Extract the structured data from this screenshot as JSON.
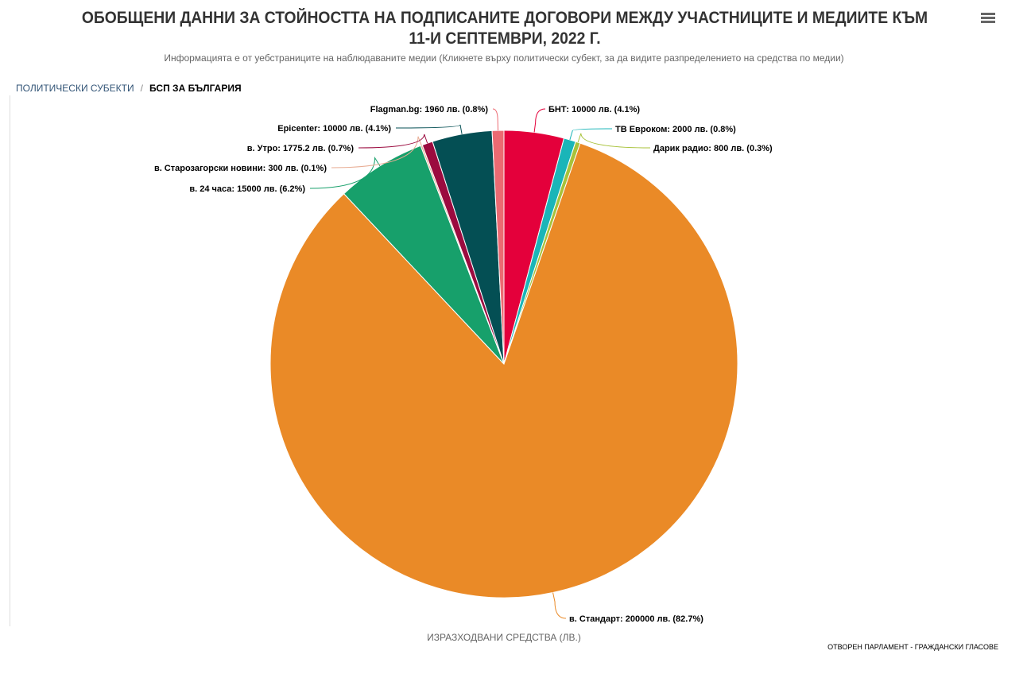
{
  "header": {
    "title": "ОБОБЩЕНИ ДАННИ ЗА СТОЙНОСТТА НА ПОДПИСАНИТЕ ДОГОВОРИ МЕЖДУ УЧАСТНИЦИТЕ И МЕДИИТЕ КЪМ 11-И СЕПТЕМВРИ, 2022 Г.",
    "subtitle": "Информацията е от уебстраниците на наблюдаваните медии (Кликнете върху политически субект, за да видите разпределението на средства по медии)",
    "menu_icon": "hamburger-menu-icon"
  },
  "breadcrumb": {
    "parent": "ПОЛИТИЧЕСКИ СУБЕКТИ",
    "separator": "/",
    "current": "БСП ЗА БЪЛГАРИЯ"
  },
  "chart_data": {
    "type": "pie",
    "xlabel": "ИЗРАЗХОДВАНИ СРЕДСТВА (ЛВ.)",
    "unit": "лв.",
    "slices": [
      {
        "name": "БНТ",
        "value": 10000,
        "percent": 4.1,
        "color": "#e4003b",
        "label": "БНТ: 10000 лв. (4.1%)"
      },
      {
        "name": "ТВ Евроком",
        "value": 2000,
        "percent": 0.8,
        "color": "#1ab5b8",
        "label": "ТВ Евроком: 2000 лв. (0.8%)"
      },
      {
        "name": "Дарик радио",
        "value": 800,
        "percent": 0.3,
        "color": "#a8c23a",
        "label": "Дарик радио: 800 лв. (0.3%)"
      },
      {
        "name": "в. Стандарт",
        "value": 200000,
        "percent": 82.7,
        "color": "#ea8a27",
        "label": "в. Стандарт: 200000 лв. (82.7%)"
      },
      {
        "name": "в. 24 часа",
        "value": 15000,
        "percent": 6.2,
        "color": "#17a06b",
        "label": "в. 24 часа: 15000 лв. (6.2%)"
      },
      {
        "name": "в. Старозагорски новини",
        "value": 300,
        "percent": 0.1,
        "color": "#e8ad94",
        "label": "в. Старозагорски новини: 300 лв. (0.1%)"
      },
      {
        "name": "в. Утро",
        "value": 1775.2,
        "percent": 0.7,
        "color": "#9b0b3f",
        "label": "в. Утро: 1775.2 лв. (0.7%)"
      },
      {
        "name": "Epicenter",
        "value": 10000,
        "percent": 4.1,
        "color": "#044f54",
        "label": "Epicenter: 10000 лв. (4.1%)"
      },
      {
        "name": "Flagman.bg",
        "value": 1960,
        "percent": 0.8,
        "color": "#ec6a72",
        "label": "Flagman.bg: 1960 лв. (0.8%)"
      }
    ]
  },
  "credits": "ОТВОРЕН ПАРЛАМЕНТ - ГРАЖДАНСКИ ГЛАСОВЕ"
}
